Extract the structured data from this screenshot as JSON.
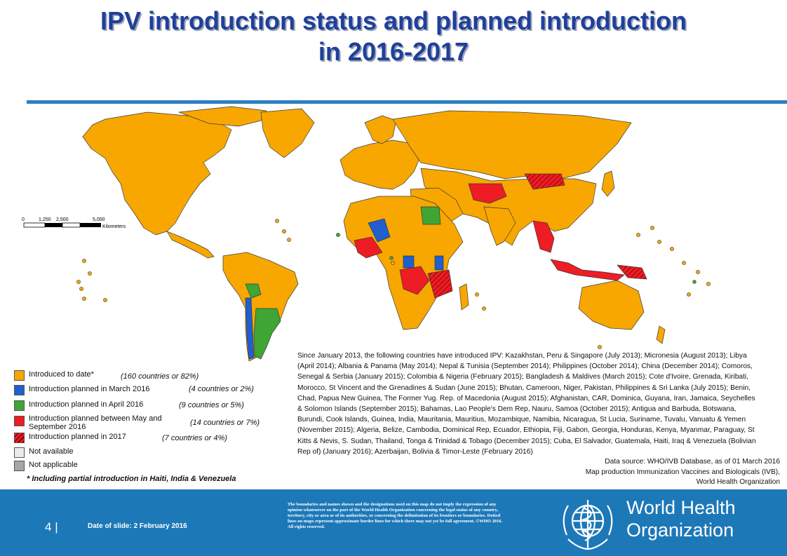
{
  "title": {
    "line1": "IPV introduction status and planned introduction",
    "line2": "in 2016-2017"
  },
  "scale_bar": {
    "ticks": [
      "0",
      "1,250",
      "2,500",
      "5,000"
    ],
    "unit": "Kilometers"
  },
  "legend": [
    {
      "label": "Introduced to date*",
      "count": "(160 countries or 82%)",
      "color": "#f7a700",
      "pattern": "solid"
    },
    {
      "label": "Introduction planned in March 2016",
      "count": "(4 countries or 2%)",
      "color": "#1f5fd0",
      "pattern": "solid"
    },
    {
      "label": "Introduction planned in April 2016",
      "count": "(9 countries or 5%)",
      "color": "#3fa535",
      "pattern": "solid"
    },
    {
      "label": "Introduction planned between May and September 2016",
      "count": "(14 countries or 7%)",
      "color": "#ee1c24",
      "pattern": "solid"
    },
    {
      "label": "Introduction planned in 2017",
      "count": "(7 countries or 4%)",
      "color": "#ee1c24",
      "pattern": "hatched"
    },
    {
      "label": "Not available",
      "count": "",
      "color": "#ececec",
      "pattern": "solid"
    },
    {
      "label": "Not applicable",
      "count": "",
      "color": "#a6a6a6",
      "pattern": "solid"
    }
  ],
  "footnote": "* Including partial introduction in Haiti, India & Venezuela",
  "notes": "Since January 2013, the following countries have introduced IPV: Kazakhstan, Peru & Singapore (July 2013); Micronesia (August 2013); Libya (April 2014); Albania & Panama (May 2014); Nepal & Tunisia (September 2014); Philippines (October 2014); China (December 2014); Comoros, Senegal & Serbia (January 2015); Colombia & Nigeria (February 2015); Bangladesh & Maldives (March 2015); Cote d'Ivoire, Grenada, Kiribati, Morocco, St Vincent and the Grenadines & Sudan (June 2015); Bhutan, Cameroon, Niger, Pakistan, Philippines & Sri Lanka (July 2015); Benin, Chad, Papua New Guinea, The Former Yug. Rep. of Macedonia (August 2015); Afghanistan, CAR, Dominica, Guyana, Iran, Jamaica, Seychelles & Solomon Islands (September 2015); Bahamas, Lao People's Dem Rep, Nauru, Samoa (October 2015); Antigua and Barbuda, Botswana, Burundi, Cook Islands, Guinea, India, Mauritania, Mauritius, Mozambique, Namibia, Nicaragua, St Lucia, Suriname, Tuvalu, Vanuatu & Yemen (November 2015); Algeria, Belize, Cambodia, Dominical Rep, Ecuador, Ethiopia, Fiji, Gabon, Georgia, Honduras, Kenya, Myanmar, Paraguay, St Kitts & Nevis, S. Sudan, Thailand, Tonga & Trinidad & Tobago (December 2015); Cuba, El Salvador, Guatemala, Haiti, Iraq & Venezuela (Bolivian Rep of) (January 2016); Azerbaijan, Bolivia & Timor-Leste (February 2016)",
  "source": {
    "line1": "Data source: WHO/IVB Database, as of 01 March 2016",
    "line2": "Map production Immunization Vaccines and Biologicals (IVB),",
    "line3": "World Health Organization"
  },
  "footer": {
    "slide_number": "4",
    "separator": "|",
    "date": "Date of slide: 2 February 2016",
    "disclaimer": "The boundaries and names shown and the designations used on this map do not imply the expression of any opinion whatsoever on the part of the World Health Organization concerning the legal status of any country, territory, city or area or of its authorities, or concerning the delimitation of its frontiers or boundaries. Dotted lines on maps represent approximate border lines for which there may not yet be full agreement. ©WHO 2016. All rights reserved.",
    "org_line1": "World Health",
    "org_line2": "Organization"
  },
  "colors": {
    "title": "#1f3f9a",
    "footer_bg": "#1d78b8",
    "introduced": "#f7a700",
    "march": "#1f5fd0",
    "april": "#3fa535",
    "may_sept": "#ee1c24",
    "not_available": "#ececec",
    "not_applicable": "#a6a6a6"
  }
}
